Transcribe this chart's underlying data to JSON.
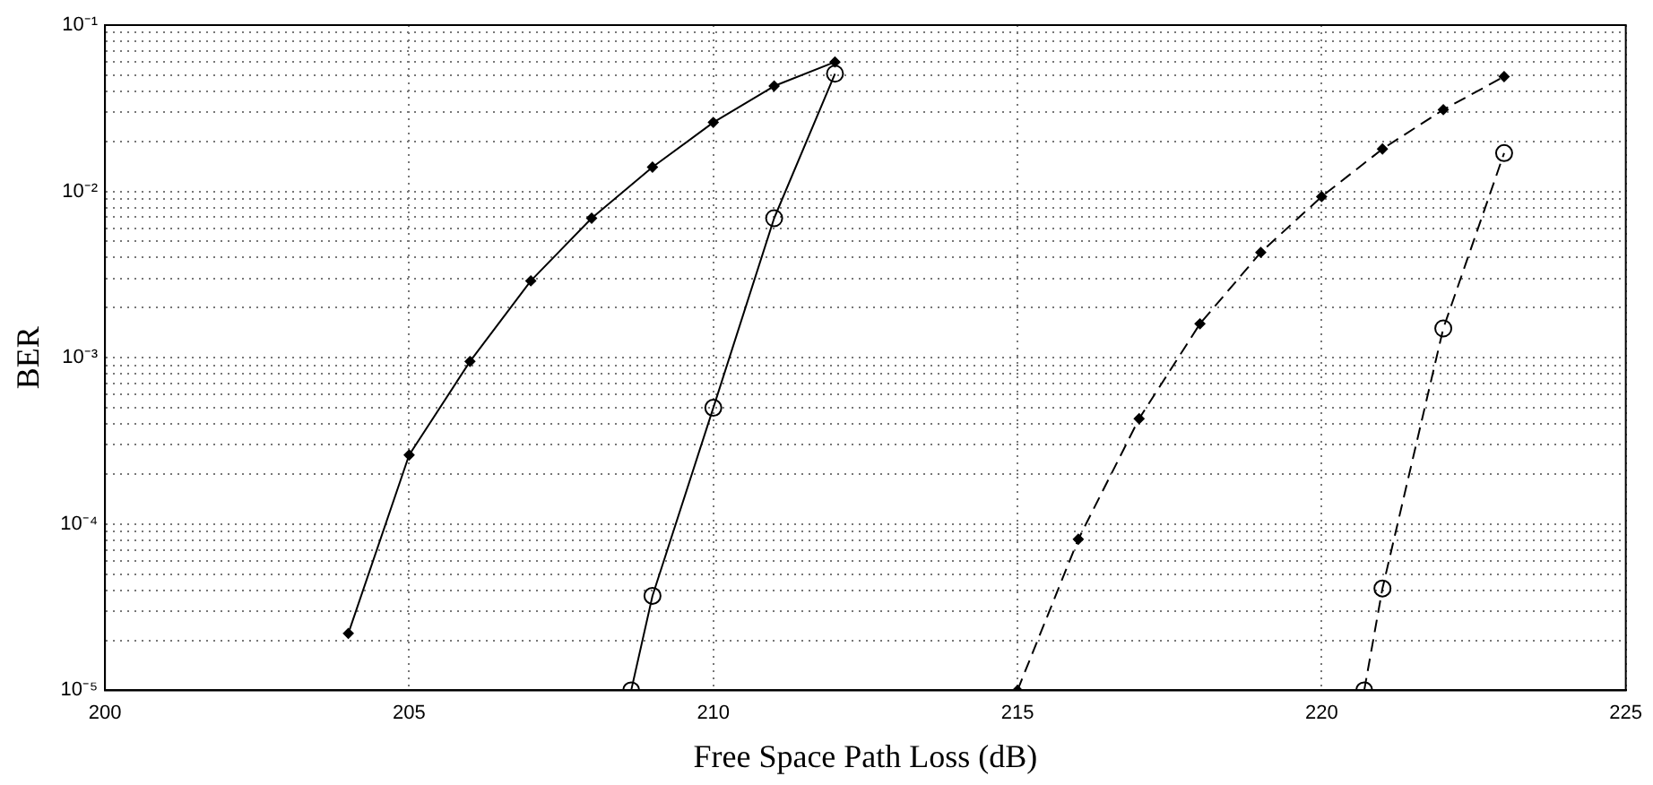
{
  "chart_data": {
    "type": "line",
    "xlabel": "Free Space Path Loss (dB)",
    "ylabel": "BER",
    "log": "y",
    "grid": true,
    "legend": false,
    "xlim": [
      200,
      225
    ],
    "xticks": [
      200,
      205,
      210,
      215,
      220,
      225
    ],
    "ylim": [
      1e-05,
      0.1
    ],
    "yticks": [
      {
        "value": 1e-05,
        "label": "10⁻⁵"
      },
      {
        "value": 2e-05,
        "label": null
      },
      {
        "value": 3e-05,
        "label": null
      },
      {
        "value": 4e-05,
        "label": null
      },
      {
        "value": 5e-05,
        "label": null
      },
      {
        "value": 6e-05,
        "label": null
      },
      {
        "value": 7e-05,
        "label": null
      },
      {
        "value": 8e-05,
        "label": null
      },
      {
        "value": 9e-05,
        "label": null
      },
      {
        "value": 0.0001,
        "label": "10⁻⁴"
      },
      {
        "value": 0.0002,
        "label": null
      },
      {
        "value": 0.0003,
        "label": null
      },
      {
        "value": 0.0004,
        "label": null
      },
      {
        "value": 0.0005,
        "label": null
      },
      {
        "value": 0.0006,
        "label": null
      },
      {
        "value": 0.0007,
        "label": null
      },
      {
        "value": 0.0008,
        "label": null
      },
      {
        "value": 0.0009,
        "label": null
      },
      {
        "value": 0.001,
        "label": "10⁻³"
      },
      {
        "value": 0.002,
        "label": null
      },
      {
        "value": 0.003,
        "label": null
      },
      {
        "value": 0.004,
        "label": null
      },
      {
        "value": 0.005,
        "label": null
      },
      {
        "value": 0.006,
        "label": null
      },
      {
        "value": 0.007,
        "label": null
      },
      {
        "value": 0.008,
        "label": null
      },
      {
        "value": 0.009,
        "label": null
      },
      {
        "value": 0.01,
        "label": "10⁻²"
      },
      {
        "value": 0.02,
        "label": null
      },
      {
        "value": 0.03,
        "label": null
      },
      {
        "value": 0.04,
        "label": null
      },
      {
        "value": 0.05,
        "label": null
      },
      {
        "value": 0.06,
        "label": null
      },
      {
        "value": 0.07,
        "label": null
      },
      {
        "value": 0.08,
        "label": null
      },
      {
        "value": 0.09,
        "label": null
      },
      {
        "value": 0.1,
        "label": "10⁻¹"
      }
    ],
    "series": [
      {
        "color": "#000000",
        "marker": "diamond",
        "line_style": "solid",
        "x": [
          204,
          205,
          206,
          207,
          208,
          209,
          210,
          211,
          212
        ],
        "values": [
          2.2e-05,
          0.00026,
          0.00095,
          0.0029,
          0.0069,
          0.014,
          0.026,
          0.043,
          0.06
        ]
      },
      {
        "color": "#000000",
        "marker": "circle",
        "line_style": "solid",
        "x": [
          208.65,
          209,
          210,
          211,
          212
        ],
        "values": [
          1e-05,
          3.7e-05,
          0.0005,
          0.0069,
          0.051
        ]
      },
      {
        "color": "#000000",
        "marker": "diamond",
        "line_style": "dashed",
        "x": [
          215,
          216,
          217,
          218,
          219,
          220,
          221,
          222,
          223
        ],
        "values": [
          1e-05,
          8.1e-05,
          0.00043,
          0.0016,
          0.0043,
          0.0093,
          0.018,
          0.031,
          0.049
        ]
      },
      {
        "color": "#000000",
        "marker": "circle",
        "line_style": "dashed",
        "x": [
          220.7,
          221,
          222,
          223
        ],
        "values": [
          1e-05,
          4.1e-05,
          0.0015,
          0.017
        ]
      }
    ]
  }
}
